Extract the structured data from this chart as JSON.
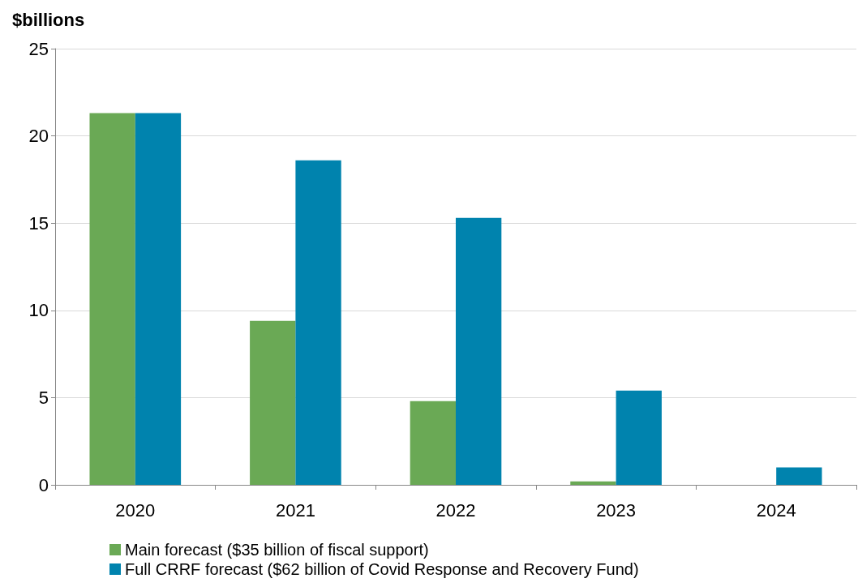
{
  "chart_data": {
    "type": "bar",
    "ylabel": "$billions",
    "categories": [
      "2020",
      "2021",
      "2022",
      "2023",
      "2024"
    ],
    "series": [
      {
        "name": "Main forecast ($35 billion of fiscal support)",
        "color": "#6aa955",
        "values": [
          21.3,
          9.4,
          4.8,
          0.2,
          0
        ]
      },
      {
        "name": "Full CRRF forecast ($62 billion of Covid Response and Recovery Fund)",
        "color": "#0083ae",
        "values": [
          21.3,
          18.6,
          15.3,
          5.4,
          1.0
        ]
      }
    ],
    "ylim": [
      0,
      25
    ],
    "yticks": [
      0,
      5,
      10,
      15,
      20,
      25
    ],
    "grid": "y",
    "legend": "bottom"
  }
}
